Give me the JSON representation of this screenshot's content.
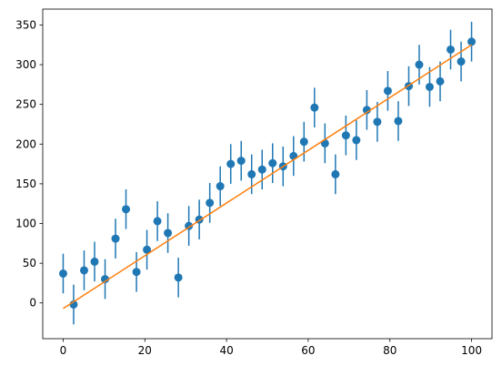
{
  "chart_data": {
    "type": "scatter",
    "title": "",
    "xlabel": "",
    "ylabel": "",
    "xlim": [
      -5,
      105
    ],
    "ylim": [
      -45,
      370
    ],
    "grid": false,
    "legend": "none",
    "x_ticks": [
      0,
      20,
      40,
      60,
      80,
      100
    ],
    "y_ticks": [
      0,
      50,
      100,
      150,
      200,
      250,
      300,
      350
    ],
    "series": [
      {
        "kind": "errorbar",
        "color": "#1f77b4",
        "x": [
          0,
          2.56,
          5.13,
          7.69,
          10.26,
          12.82,
          15.38,
          17.95,
          20.51,
          23.08,
          25.64,
          28.21,
          30.77,
          33.33,
          35.9,
          38.46,
          41.03,
          43.59,
          46.15,
          48.72,
          51.28,
          53.85,
          56.41,
          58.97,
          61.54,
          64.1,
          66.67,
          69.23,
          71.79,
          74.36,
          76.92,
          79.49,
          82.05,
          84.62,
          87.18,
          89.74,
          92.31,
          94.87,
          97.44,
          100
        ],
        "y": [
          37,
          -2,
          41,
          52,
          30,
          81,
          118,
          39,
          67,
          103,
          88,
          32,
          97,
          105,
          126,
          147,
          175,
          179,
          162,
          168,
          176,
          172,
          185,
          203,
          246,
          201,
          162,
          211,
          205,
          243,
          228,
          267,
          229,
          273,
          300,
          272,
          279,
          319,
          304,
          329
        ],
        "yerr": 25
      },
      {
        "kind": "line",
        "color": "#ff7f0e",
        "x": [
          0,
          100
        ],
        "y": [
          -7,
          325
        ]
      }
    ]
  }
}
